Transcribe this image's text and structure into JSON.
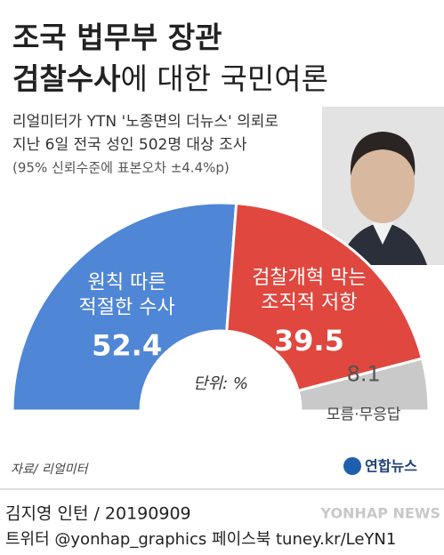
{
  "chart_data": {
    "type": "pie",
    "title": [
      "조국 법무부 장관",
      "검찰수사",
      "에 대한 국민여론"
    ],
    "subtitle": [
      "리얼미터가 YTN '노종면의 더뉴스' 의뢰로",
      "지난 6일 전국 성인 502명 대상 조사",
      "(95% 신뢰수준에 표본오차 ±4.4%p)"
    ],
    "unit_label": "단위: %",
    "categories": [
      [
        "원칙 따른",
        "적절한 수사"
      ],
      [
        "검찰개혁 막는",
        "조직적 저항"
      ],
      [
        "모름·무응답"
      ]
    ],
    "values": [
      52.4,
      39.5,
      8.1
    ],
    "colors": [
      "#4f86d6",
      "#e0473e",
      "#c9c9c9"
    ],
    "source": "자료/ 리얼미터",
    "logo": "연합뉴스",
    "credit": "김지영 인턴 / 20190909",
    "social": "트위터 @yonhap_graphics  페이스북 tuney.kr/LeYN1",
    "watermark": "YONHAP NEWS"
  }
}
